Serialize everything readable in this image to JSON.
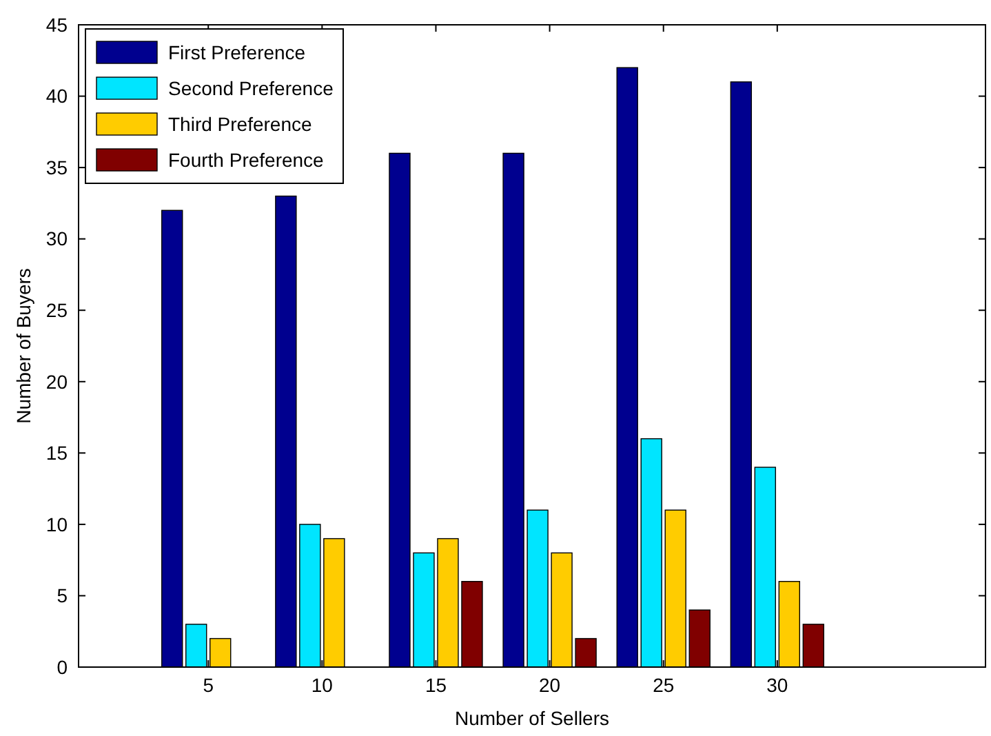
{
  "chart_data": {
    "type": "bar",
    "xlabel": "Number of Sellers",
    "ylabel": "Number of Buyers",
    "categories": [
      "5",
      "10",
      "15",
      "20",
      "25",
      "30"
    ],
    "series": [
      {
        "name": "First Preference",
        "color": "#00008f",
        "values": [
          32,
          33,
          36,
          36,
          42,
          41
        ]
      },
      {
        "name": "Second Preference",
        "color": "#00e5ff",
        "values": [
          3,
          10,
          8,
          11,
          16,
          14
        ]
      },
      {
        "name": "Third Preference",
        "color": "#ffcc00",
        "values": [
          2,
          9,
          9,
          8,
          11,
          6
        ]
      },
      {
        "name": "Fourth Preference",
        "color": "#800000",
        "values": [
          0,
          0,
          6,
          2,
          4,
          3
        ]
      }
    ],
    "ylim": [
      0,
      45
    ],
    "yticks": [
      0,
      5,
      10,
      15,
      20,
      25,
      30,
      35,
      40,
      45
    ],
    "grid": false,
    "legend": "top left"
  }
}
